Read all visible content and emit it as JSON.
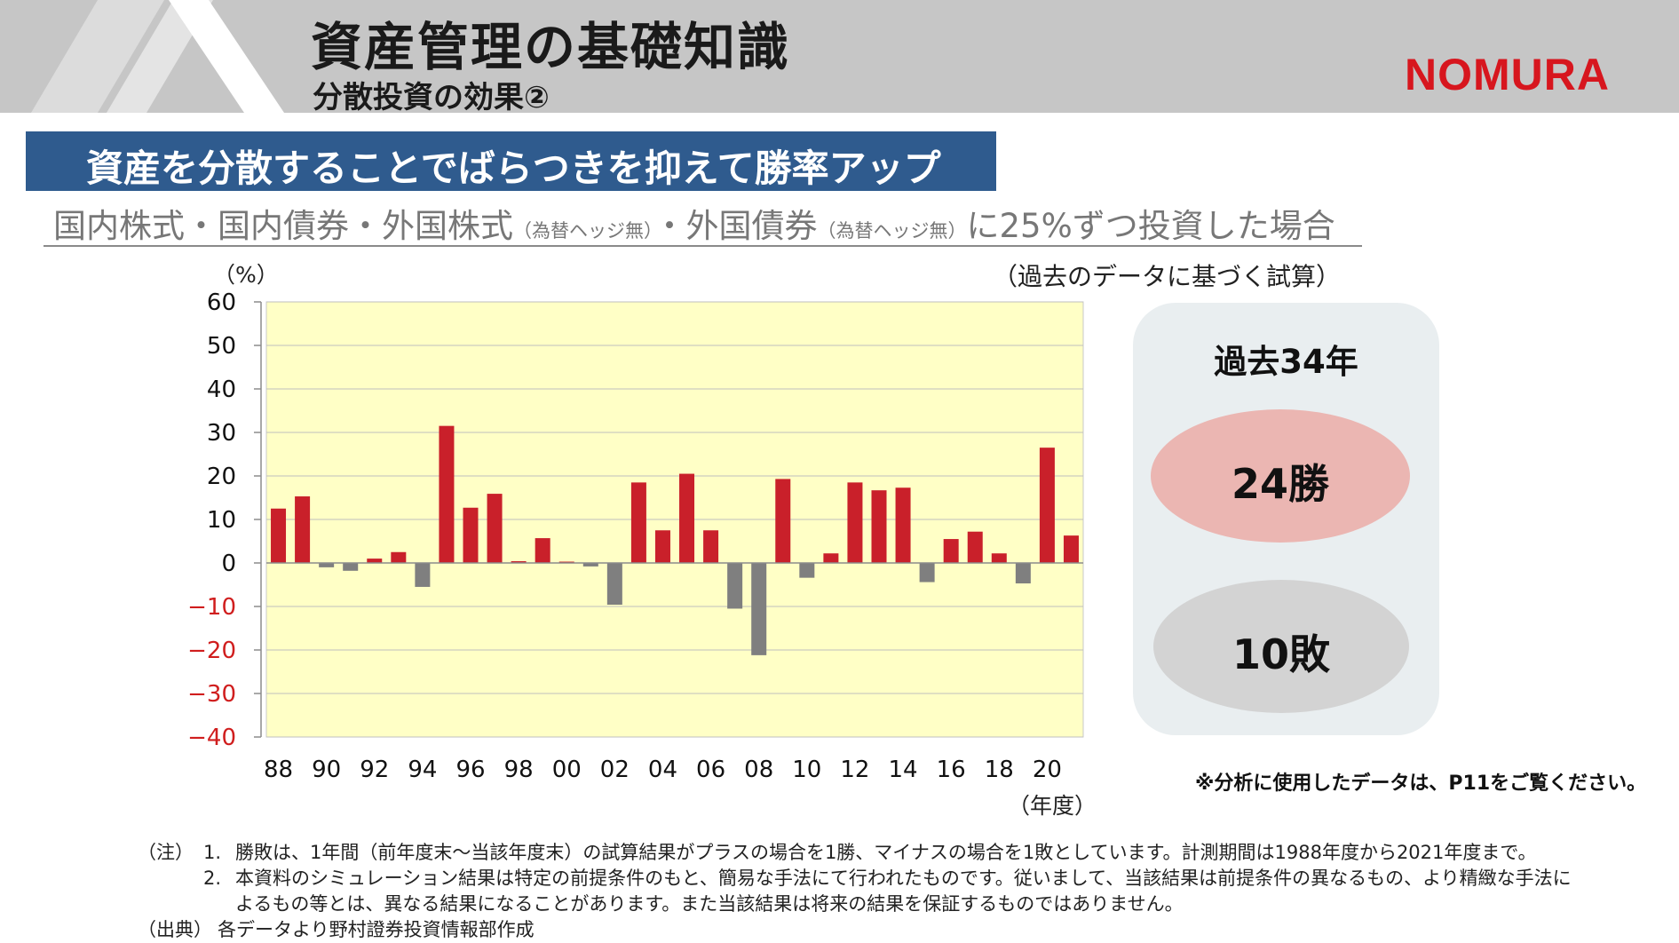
{
  "header": {
    "title": "資産管理の基礎知識",
    "subtitle": "分散投資の効果②",
    "logo_text": "NOMURA",
    "logo_color": "#d7161e"
  },
  "banner": {
    "text": "資産を分散することでばらつきを抑えて勝率アップ",
    "color": "#2f5b8e"
  },
  "condition": {
    "part1": "国内株式・国内債券・外国株式",
    "hedge1": "（為替ヘッジ無）",
    "part2": "・外国債券",
    "hedge2": "（為替ヘッジ無）",
    "part3": "に25%ずつ投資した場合"
  },
  "estimate_note": "（過去のデータに基づく試算）",
  "chart_data": {
    "type": "bar",
    "ylabel": "（%）",
    "xlabel": "（年度）",
    "ylim": [
      -40,
      60
    ],
    "yticks": [
      60,
      50,
      40,
      30,
      20,
      10,
      0,
      -10,
      -20,
      -30,
      -40
    ],
    "xtick_labels": [
      "88",
      "90",
      "92",
      "94",
      "96",
      "98",
      "00",
      "02",
      "04",
      "06",
      "08",
      "10",
      "12",
      "14",
      "16",
      "18",
      "20"
    ],
    "categories": [
      "88",
      "89",
      "90",
      "91",
      "92",
      "93",
      "94",
      "95",
      "96",
      "97",
      "98",
      "99",
      "00",
      "01",
      "02",
      "03",
      "04",
      "05",
      "06",
      "07",
      "08",
      "09",
      "10",
      "11",
      "12",
      "13",
      "14",
      "15",
      "16",
      "17",
      "18",
      "19",
      "20",
      "21"
    ],
    "values": [
      12.5,
      15.3,
      -1.0,
      -1.8,
      1.0,
      2.5,
      -5.5,
      31.5,
      12.7,
      15.9,
      0.4,
      5.7,
      0.3,
      -0.8,
      -9.6,
      18.5,
      7.5,
      20.5,
      7.5,
      -10.5,
      -21.2,
      19.3,
      -3.4,
      2.2,
      18.5,
      16.7,
      17.3,
      -4.4,
      5.5,
      7.2,
      2.2,
      -4.7,
      26.5,
      6.3
    ],
    "positive_color": "#c9202a",
    "negative_color": "#7f7f7f",
    "plot_background": "#ffffc6",
    "negative_tick_color": "#d01e1e",
    "grid": true
  },
  "results": {
    "period": "過去34年",
    "wins": "24勝",
    "losses": "10敗",
    "wins_color": "#ebb6b2",
    "losses_color": "#d3d3d3"
  },
  "data_reference": "※分析に使用したデータは、P11をご覧ください。",
  "notes": {
    "note_label": "（注）",
    "note1_num": "1.",
    "note1_text": "勝敗は、1年間（前年度末～当該年度末）の試算結果がプラスの場合を1勝、マイナスの場合を1敗としています。計測期間は1988年度から2021年度まで。",
    "note2_num": "2.",
    "note2_line1": "本資料のシミュレーション結果は特定の前提条件のもと、簡易な手法にて行われたものです。従いまして、当該結果は前提条件の異なるもの、より精緻な手法に",
    "note2_line2": "よるもの等とは、異なる結果になることがあります。また当該結果は将来の結果を保証するものではありません。",
    "source_label": "（出典）",
    "source_text": "各データより野村證券投資情報部作成"
  }
}
